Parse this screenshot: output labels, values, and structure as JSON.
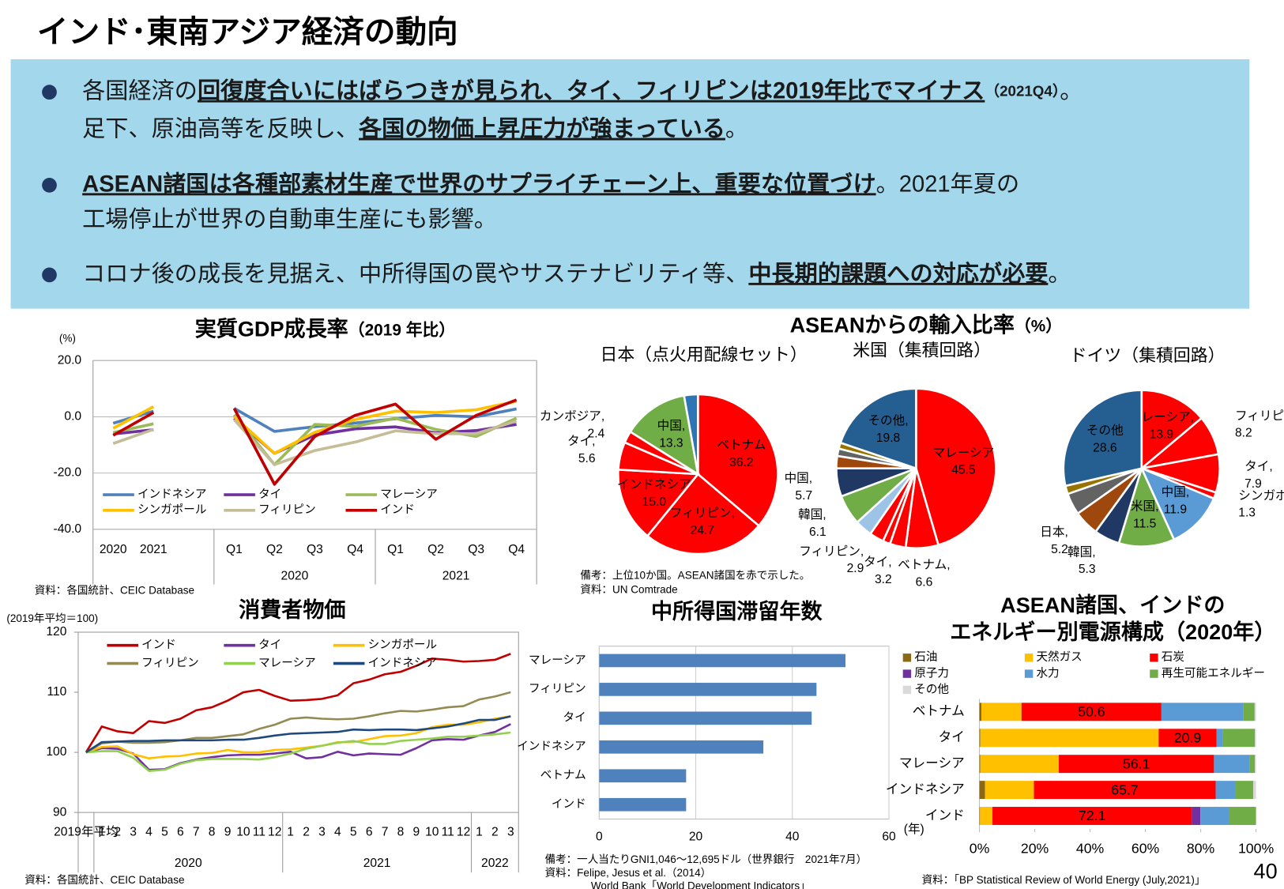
{
  "title": "インド･東南アジア経済の動向",
  "bullets": [
    {
      "lines": [
        [
          {
            "text": "各国経済の"
          },
          {
            "text": "回復度合いにはばらつきが見られ、タイ、フィリピンは2019年比でマイナス",
            "emphasis": true
          },
          {
            "text": "（2021Q4）",
            "small": true
          },
          {
            "text": "。"
          }
        ],
        [
          {
            "text": "足下、原油高等を反映し、"
          },
          {
            "text": "各国の物価上昇圧力が強まっている",
            "emphasis": true
          },
          {
            "text": "。"
          }
        ]
      ]
    },
    {
      "lines": [
        [
          {
            "text": "ASEAN諸国は各種部素材生産で世界のサプライチェーン上、重要な位置づけ",
            "emphasis": true
          },
          {
            "text": "。2021年夏の"
          }
        ],
        [
          {
            "text": "工場停止が世界の自動車生産にも影響。"
          }
        ]
      ]
    },
    {
      "lines": [
        [
          {
            "text": "コロナ後の成長を見据え、中所得国の罠やサステナビリティ等、"
          },
          {
            "text": "中長期的課題への対応が必要",
            "emphasis": true
          },
          {
            "text": "。"
          }
        ]
      ]
    }
  ],
  "import_share": {
    "title": "ASEANからの輸入比率",
    "unit": "（%）",
    "notes": [
      "備考：上位10か国。ASEAN諸国を赤で示した。",
      "資料：UN Comtrade"
    ]
  },
  "page_number": "40",
  "chart_data": [
    {
      "type": "line",
      "title": "実質GDP成長率",
      "subtitle": "（2019 年比）",
      "y_unit": "(%)",
      "source": "資料：各国統計、CEIC Database",
      "categories": [
        "2020",
        "2021",
        null,
        "Q1",
        "Q2",
        "Q3",
        "Q4",
        "Q1",
        "Q2",
        "Q3",
        "Q4"
      ],
      "groups": [
        {
          "label": "2020",
          "span": [
            3,
            6
          ]
        },
        {
          "label": "2021",
          "span": [
            7,
            10
          ]
        }
      ],
      "ylim": [
        -40,
        20
      ],
      "yticks": [
        {
          "value": 20,
          "label": "20.0"
        },
        {
          "value": 0,
          "label": "0.0"
        },
        {
          "value": -20,
          "label": "-20.0"
        },
        {
          "value": -40,
          "label": "-40.0"
        }
      ],
      "grid": true,
      "series": [
        {
          "name": "インドネシア",
          "color": "#4f81bd",
          "values": [
            -2.3,
            2.0,
            null,
            3.0,
            -5.2,
            -3.5,
            -2.2,
            -0.7,
            0.5,
            0.0,
            2.8
          ]
        },
        {
          "name": "タイ",
          "color": "#7030a0",
          "values": [
            -6.1,
            -4.6,
            null,
            -0.5,
            -13.0,
            -6.5,
            -4.3,
            -3.6,
            -5.7,
            -4.9,
            -2.7
          ]
        },
        {
          "name": "マレーシア",
          "color": "#9bbb59",
          "values": [
            -5.6,
            -2.5,
            null,
            0.7,
            -17.0,
            -2.7,
            -3.4,
            -0.5,
            -4.5,
            -7.0,
            -0.5
          ]
        },
        {
          "name": "シンガポール",
          "color": "#ffc000",
          "values": [
            -4.1,
            3.6,
            null,
            0.1,
            -13.0,
            -5.5,
            -1.0,
            2.0,
            1.5,
            2.5,
            5.5
          ]
        },
        {
          "name": "フィリピン",
          "color": "#c4bd97",
          "values": [
            -9.5,
            -4.5,
            null,
            -1.0,
            -17.0,
            -12.0,
            -9.0,
            -5.0,
            -6.0,
            -6.0,
            -1.5
          ]
        },
        {
          "name": "インド",
          "color": "#c00000",
          "values": [
            -6.6,
            1.5,
            null,
            3.0,
            -24.0,
            -7.0,
            0.5,
            4.5,
            -8.0,
            0.5,
            6.0
          ]
        }
      ]
    },
    {
      "type": "pie",
      "title": "日本（点火用配線セット）",
      "categories": [
        "ベトナム",
        "フィリピン,",
        "インドネシア",
        "タイ,",
        "カンボジア,",
        "中国,",
        null
      ],
      "values": [
        36.2,
        24.7,
        15.0,
        5.6,
        2.4,
        13.3,
        2.8
      ],
      "value_labels": [
        "36.2",
        "24.7",
        "15.0",
        "5.6",
        "2.4",
        "13.3",
        null
      ],
      "colors": [
        "#ff0000",
        "#ff0000",
        "#ff0000",
        "#ff0000",
        "#ff0000",
        "#70ad47",
        "#2e75b6"
      ]
    },
    {
      "type": "pie",
      "title": "米国（集積回路）",
      "categories": [
        "マレーシア",
        "ベトナム,",
        "タイ,",
        null,
        "フィリピン,",
        null,
        "韓国,",
        "中国,",
        null,
        null,
        null,
        "その他,"
      ],
      "values": [
        45.5,
        6.6,
        3.2,
        1.5,
        2.9,
        3.5,
        6.1,
        5.7,
        2.5,
        1.5,
        1.2,
        19.8
      ],
      "value_labels": [
        "45.5",
        "6.6",
        "3.2",
        null,
        "2.9",
        null,
        "6.1",
        "5.7",
        null,
        null,
        null,
        "19.8"
      ],
      "colors": [
        "#ff0000",
        "#ff0000",
        "#ff0000",
        "#ff0000",
        "#ff0000",
        "#9dc3e6",
        "#70ad47",
        "#1f3864",
        "#9e480e",
        "#636363",
        "#997300",
        "#255e91"
      ]
    },
    {
      "type": "pie",
      "title": "ドイツ（集積回路）",
      "categories": [
        "マレーシア,",
        "フィリピン,",
        "タイ,",
        "シンガポール,",
        "中国,",
        "米国,",
        "韓国,",
        "日本,",
        null,
        null,
        "その他"
      ],
      "values": [
        13.9,
        8.2,
        7.9,
        1.3,
        11.9,
        11.5,
        5.3,
        5.2,
        4.5,
        1.7,
        28.6
      ],
      "value_labels": [
        "13.9",
        "8.2",
        "7.9",
        "1.3",
        "11.9",
        "11.5",
        "5.3",
        "5.2",
        null,
        null,
        "28.6"
      ],
      "colors": [
        "#ff0000",
        "#ff0000",
        "#ff0000",
        "#ff0000",
        "#5b9bd5",
        "#70ad47",
        "#1f3864",
        "#9e480e",
        "#636363",
        "#997300",
        "#255e91"
      ]
    },
    {
      "type": "line",
      "title": "消費者物価",
      "y_unit": "(2019年平均＝100)",
      "source": "資料：各国統計、CEIC Database",
      "categories": [
        "2019年平均",
        "1",
        "2",
        "3",
        "4",
        "5",
        "6",
        "7",
        "8",
        "9",
        "10",
        "11",
        "12",
        "1",
        "2",
        "3",
        "4",
        "5",
        "6",
        "7",
        "8",
        "9",
        "10",
        "11",
        "12",
        "1",
        "2",
        "3"
      ],
      "groups": [
        {
          "label": "2020",
          "span": [
            1,
            12
          ]
        },
        {
          "label": "2021",
          "span": [
            13,
            24
          ]
        },
        {
          "label": "2022",
          "span": [
            25,
            27
          ]
        }
      ],
      "ylim": [
        90,
        120
      ],
      "yticks": [
        90,
        100,
        110,
        120
      ],
      "grid": false,
      "series": [
        {
          "name": "インド",
          "color": "#c00000",
          "values": [
            100,
            104.3,
            103.5,
            103.2,
            105.2,
            104.9,
            105.6,
            107,
            107.5,
            108.6,
            110,
            110.4,
            109.4,
            108.6,
            108.7,
            108.9,
            109.5,
            111.5,
            112.1,
            113,
            113.4,
            114.4,
            115.6,
            115.4,
            115.1,
            115.2,
            115.4,
            116.4
          ]
        },
        {
          "name": "タイ",
          "color": "#7030a0",
          "values": [
            100,
            100.7,
            100.6,
            99.8,
            97.1,
            97.2,
            98.2,
            98.8,
            99.2,
            99.5,
            99.6,
            99.6,
            99.8,
            100.1,
            99,
            99.2,
            100.1,
            99.5,
            99.8,
            99.7,
            99.6,
            100.7,
            102,
            102.2,
            102.1,
            102.8,
            103.4,
            104.7
          ]
        },
        {
          "name": "シンガポール",
          "color": "#ffc000",
          "values": [
            100,
            100.9,
            101,
            99.7,
            99,
            99.3,
            99.4,
            99.8,
            99.9,
            100.4,
            100,
            100,
            100.4,
            100.5,
            100.8,
            101.1,
            101.7,
            101.7,
            102.2,
            102.7,
            102.8,
            103.2,
            104.2,
            104.6,
            104.6,
            105,
            105.6,
            106
          ]
        },
        {
          "name": "フィリピン",
          "color": "#948a54",
          "values": [
            100,
            101.5,
            101.8,
            101.6,
            101.6,
            101.7,
            102,
            102.4,
            102.4,
            102.7,
            103,
            103.9,
            104.6,
            105.6,
            105.8,
            105.6,
            105.5,
            105.6,
            106,
            106.5,
            106.9,
            106.8,
            107.1,
            107.5,
            107.7,
            108.8,
            109.3,
            110
          ]
        },
        {
          "name": "マレーシア",
          "color": "#92d050",
          "values": [
            100,
            100.2,
            100.2,
            99.1,
            96.9,
            97.1,
            98.1,
            98.7,
            98.9,
            98.9,
            98.9,
            98.8,
            99.2,
            99.8,
            100.6,
            101.1,
            101.6,
            101.9,
            101.4,
            101.4,
            101.9,
            102.1,
            102.3,
            102.6,
            102.6,
            102.8,
            103,
            103.3
          ]
        },
        {
          "name": "インドネシア",
          "color": "#1f497d",
          "values": [
            100,
            101.7,
            101.8,
            101.9,
            101.9,
            102,
            102,
            102,
            102,
            102.1,
            102.1,
            102.4,
            102.8,
            103.1,
            103.2,
            103.3,
            103.4,
            103.8,
            103.7,
            103.8,
            103.8,
            103.7,
            104,
            104.3,
            104.8,
            105.4,
            105.4,
            106
          ]
        }
      ]
    },
    {
      "type": "bar",
      "title": "中所得国滞留年数",
      "x_unit": "(年)",
      "notes": [
        "備考：一人当たりGNI1,046～12,695ドル（世界銀行　2021年7月）",
        "資料：Felipe, Jesus et al.（2014）",
        "World Bank「World Development Indicators」"
      ],
      "categories": [
        "マレーシア",
        "フィリピン",
        "タイ",
        "インドネシア",
        "ベトナム",
        "インド"
      ],
      "values": [
        51,
        45,
        44,
        34,
        18,
        18
      ],
      "color": "#4f81bd",
      "xlim": [
        0,
        60
      ],
      "xticks": [
        0,
        20,
        40,
        60
      ],
      "grid": true
    },
    {
      "type": "stacked-bar",
      "title": [
        "ASEAN諸国、インドの",
        "エネルギー別電源構成（2020年）"
      ],
      "source": "資料：「BP Statistical Review of World Energy (July,2021)」",
      "categories": [
        "ベトナム",
        "タイ",
        "マレーシア",
        "インドネシア",
        "インド"
      ],
      "xlim": [
        0,
        100
      ],
      "xticks": [
        {
          "value": 0,
          "label": "0%"
        },
        {
          "value": 20,
          "label": "20%"
        },
        {
          "value": 40,
          "label": "40%"
        },
        {
          "value": 60,
          "label": "60%"
        },
        {
          "value": 80,
          "label": "80%"
        },
        {
          "value": 100,
          "label": "100%"
        }
      ],
      "series": [
        {
          "name": "石油",
          "color": "#8b6914",
          "values": [
            0.7,
            0.3,
            0.3,
            2.0,
            0.2
          ]
        },
        {
          "name": "天然ガス",
          "color": "#ffc000",
          "values": [
            14.5,
            64.5,
            28.4,
            17.7,
            4.5
          ]
        },
        {
          "name": "石炭",
          "color": "#ff0000",
          "values": [
            50.6,
            20.9,
            56.1,
            65.7,
            72.1
          ],
          "data_labels": true
        },
        {
          "name": "原子力",
          "color": "#7030a0",
          "values": [
            0,
            0,
            0,
            0,
            3.1
          ]
        },
        {
          "name": "水力",
          "color": "#5b9bd5",
          "values": [
            29.5,
            2.4,
            13.0,
            7.0,
            10.5
          ]
        },
        {
          "name": "再生可能エネルギー",
          "color": "#70ad47",
          "values": [
            4.2,
            11.5,
            1.8,
            6.6,
            9.6
          ]
        },
        {
          "name": "その他",
          "color": "#d9d9d9",
          "values": [
            0.5,
            0.4,
            0.4,
            1.0,
            0
          ]
        }
      ]
    }
  ]
}
